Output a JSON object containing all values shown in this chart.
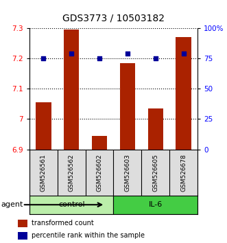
{
  "title": "GDS3773 / 10503182",
  "samples": [
    "GSM526561",
    "GSM526562",
    "GSM526602",
    "GSM526603",
    "GSM526605",
    "GSM526678"
  ],
  "bar_values": [
    7.055,
    7.295,
    6.945,
    7.185,
    7.035,
    7.27
  ],
  "percentile_left_values": [
    7.2,
    7.216,
    7.2,
    7.216,
    7.2,
    7.216
  ],
  "ylim_left": [
    6.9,
    7.3
  ],
  "ylim_right": [
    0,
    100
  ],
  "yticks_left": [
    6.9,
    7.0,
    7.1,
    7.2,
    7.3
  ],
  "yticks_right": [
    0,
    25,
    50,
    75,
    100
  ],
  "ytick_labels_left": [
    "6.9",
    "7",
    "7.1",
    "7.2",
    "7.3"
  ],
  "ytick_labels_right": [
    "0",
    "25",
    "50",
    "75",
    "100%"
  ],
  "bar_color": "#AA2200",
  "percentile_color": "#000099",
  "bar_width": 0.55,
  "groups": [
    {
      "label": "control",
      "start": 0,
      "end": 3,
      "color": "#BBEEAA"
    },
    {
      "label": "IL-6",
      "start": 3,
      "end": 6,
      "color": "#44CC44"
    }
  ],
  "agent_label": "agent",
  "legend_bar_label": "transformed count",
  "legend_pct_label": "percentile rank within the sample",
  "title_fontsize": 10,
  "tick_fontsize": 7.5,
  "sample_fontsize": 6.5
}
